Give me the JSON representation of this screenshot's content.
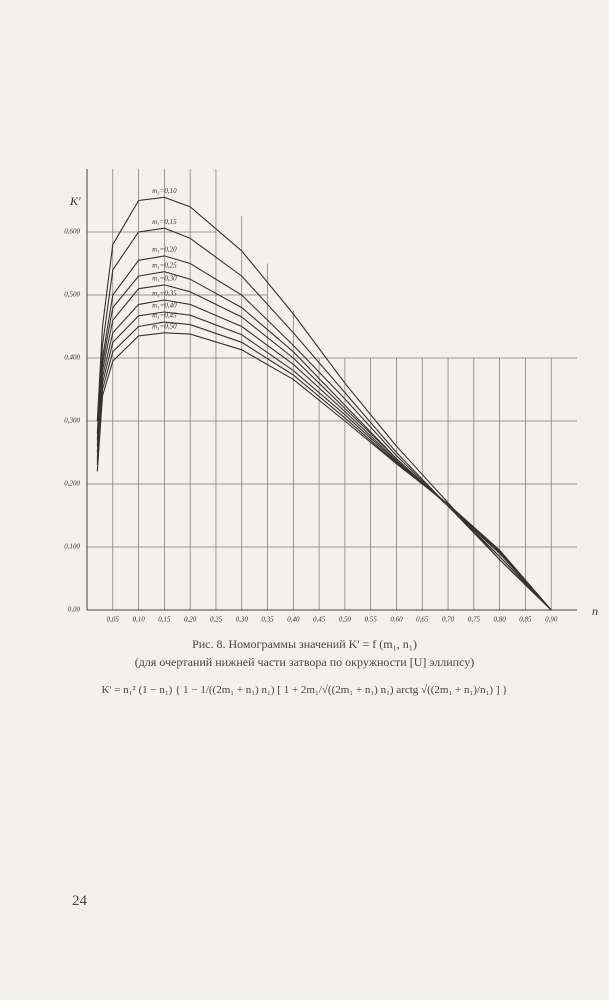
{
  "chart_data": {
    "type": "line",
    "y_label": "K'",
    "x_label": "n",
    "x": [
      0.02,
      0.03,
      0.05,
      0.1,
      0.15,
      0.2,
      0.3,
      0.4,
      0.5,
      0.6,
      0.7,
      0.8,
      0.9
    ],
    "series": [
      {
        "name": "m₁=0,10",
        "color": "#333333",
        "values": [
          0.3,
          0.45,
          0.58,
          0.65,
          0.655,
          0.64,
          0.57,
          0.47,
          0.36,
          0.26,
          0.17,
          0.08,
          0
        ]
      },
      {
        "name": "m₁=0,15",
        "color": "#333333",
        "values": [
          0.28,
          0.42,
          0.54,
          0.6,
          0.606,
          0.59,
          0.53,
          0.44,
          0.345,
          0.25,
          0.165,
          0.08,
          0
        ]
      },
      {
        "name": "m₁=0,20",
        "color": "#333333",
        "values": [
          0.27,
          0.4,
          0.5,
          0.555,
          0.562,
          0.55,
          0.5,
          0.42,
          0.335,
          0.245,
          0.165,
          0.085,
          0
        ]
      },
      {
        "name": "m₁=0,25",
        "color": "#333333",
        "values": [
          0.26,
          0.39,
          0.48,
          0.53,
          0.537,
          0.525,
          0.48,
          0.41,
          0.325,
          0.24,
          0.165,
          0.085,
          0
        ]
      },
      {
        "name": "m₁=0,30",
        "color": "#333333",
        "values": [
          0.25,
          0.38,
          0.46,
          0.51,
          0.516,
          0.505,
          0.465,
          0.4,
          0.32,
          0.24,
          0.165,
          0.09,
          0
        ]
      },
      {
        "name": "m₁=0,35",
        "color": "#333333",
        "values": [
          0.24,
          0.37,
          0.44,
          0.485,
          0.492,
          0.485,
          0.45,
          0.39,
          0.315,
          0.237,
          0.166,
          0.09,
          0
        ]
      },
      {
        "name": "m₁=0,40",
        "color": "#333333",
        "values": [
          0.235,
          0.36,
          0.425,
          0.467,
          0.473,
          0.468,
          0.437,
          0.38,
          0.31,
          0.235,
          0.167,
          0.092,
          0
        ]
      },
      {
        "name": "m₁=0,45",
        "color": "#333333",
        "values": [
          0.23,
          0.35,
          0.41,
          0.45,
          0.457,
          0.453,
          0.425,
          0.373,
          0.305,
          0.233,
          0.168,
          0.093,
          0
        ]
      },
      {
        "name": "m₁=0,50",
        "color": "#333333",
        "values": [
          0.22,
          0.34,
          0.395,
          0.435,
          0.44,
          0.438,
          0.413,
          0.366,
          0.3,
          0.232,
          0.168,
          0.095,
          0
        ]
      }
    ],
    "xlim": [
      0,
      0.95
    ],
    "ylim": [
      0,
      0.7
    ],
    "xticks": [
      {
        "value": 0.05,
        "label": "0,05"
      },
      {
        "value": 0.1,
        "label": "0,10"
      },
      {
        "value": 0.15,
        "label": "0,15"
      },
      {
        "value": 0.2,
        "label": "0,20"
      },
      {
        "value": 0.25,
        "label": "0,25"
      },
      {
        "value": 0.3,
        "label": "0,30"
      },
      {
        "value": 0.35,
        "label": "0,35"
      },
      {
        "value": 0.4,
        "label": "0,40"
      },
      {
        "value": 0.45,
        "label": "0,45"
      },
      {
        "value": 0.5,
        "label": "0,50"
      },
      {
        "value": 0.55,
        "label": "0,55"
      },
      {
        "value": 0.6,
        "label": "0,60"
      },
      {
        "value": 0.65,
        "label": "0,65"
      },
      {
        "value": 0.7,
        "label": "0,70"
      },
      {
        "value": 0.75,
        "label": "0,75"
      },
      {
        "value": 0.8,
        "label": "0,80"
      },
      {
        "value": 0.85,
        "label": "0,85"
      },
      {
        "value": 0.9,
        "label": "0,90"
      }
    ],
    "yticks": [
      {
        "value": 0,
        "label": "0,00"
      },
      {
        "value": 0.1,
        "label": "0,100"
      },
      {
        "value": 0.2,
        "label": "0,200"
      },
      {
        "value": 0.3,
        "label": "0,300"
      },
      {
        "value": 0.4,
        "label": "0,400"
      },
      {
        "value": 0.5,
        "label": "0,500"
      },
      {
        "value": 0.6,
        "label": "0,600"
      }
    ],
    "grid": true
  },
  "caption": {
    "title": "Рис. 8. Номограммы значений K' = f (m₁, n₁)",
    "subtitle": "(для очертаний нижней части затвора по окружности [U] эллипсу)",
    "formula": "K' = n₁² (1 − n₁) { 1 − 1/((2m₁ + n₁) n₁) [ 1 + 2m₁/√((2m₁ + n₁) n₁) arctg √((2m₁ + n₁)/n₁) ] }"
  },
  "page_number": "24"
}
